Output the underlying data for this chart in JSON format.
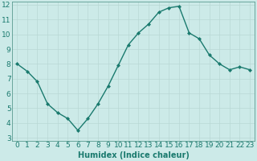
{
  "x": [
    0,
    1,
    2,
    3,
    4,
    5,
    6,
    7,
    8,
    9,
    10,
    11,
    12,
    13,
    14,
    15,
    16,
    17,
    18,
    19,
    20,
    21,
    22,
    23
  ],
  "y": [
    8.0,
    7.5,
    6.8,
    5.3,
    4.7,
    4.3,
    3.5,
    4.3,
    5.3,
    6.5,
    7.9,
    9.3,
    10.1,
    10.7,
    11.5,
    11.8,
    11.9,
    10.1,
    9.7,
    8.6,
    8.0,
    7.6,
    7.8,
    7.6
  ],
  "line_color": "#1a7a6e",
  "marker": "D",
  "marker_size": 2.0,
  "bg_color": "#cceae8",
  "grid_color": "#b8d8d5",
  "tick_color": "#1a7a6e",
  "xlabel": "Humidex (Indice chaleur)",
  "ylim": [
    3,
    12
  ],
  "xlim": [
    -0.5,
    23.5
  ],
  "yticks": [
    3,
    4,
    5,
    6,
    7,
    8,
    9,
    10,
    11,
    12
  ],
  "xticks": [
    0,
    1,
    2,
    3,
    4,
    5,
    6,
    7,
    8,
    9,
    10,
    11,
    12,
    13,
    14,
    15,
    16,
    17,
    18,
    19,
    20,
    21,
    22,
    23
  ],
  "xlabel_fontsize": 7,
  "tick_fontsize": 6.5,
  "line_width": 1.0,
  "spine_color": "#5a9a90"
}
